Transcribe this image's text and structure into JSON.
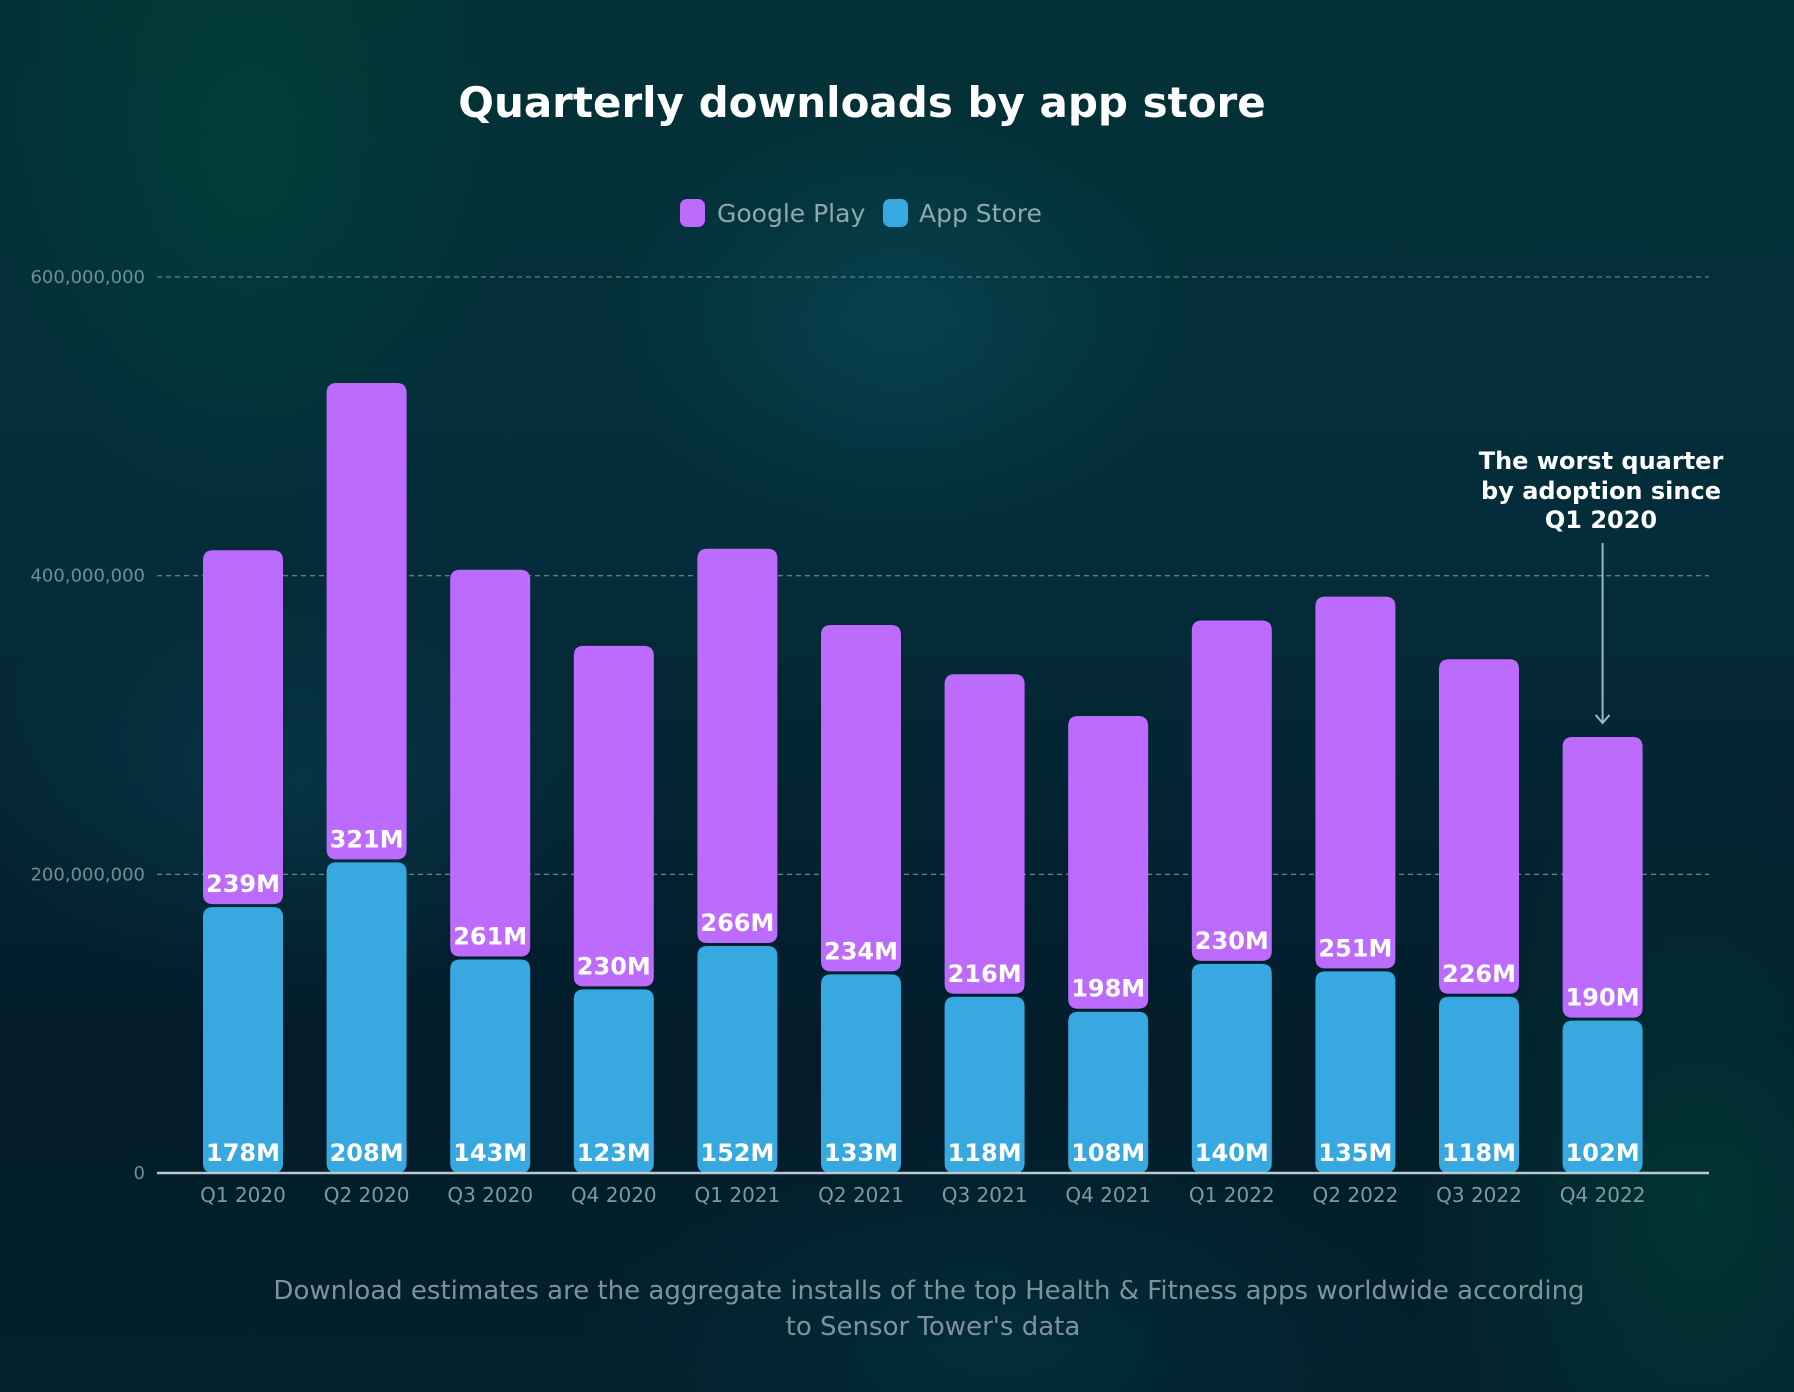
{
  "chart_data": {
    "type": "bar",
    "stacked": true,
    "title": "Quarterly downloads by app store",
    "xlabel": "",
    "ylabel": "",
    "ylim": [
      0,
      600000000
    ],
    "yticks": [
      0,
      200000000,
      400000000,
      600000000
    ],
    "ytick_labels": [
      "0",
      "200,000,000",
      "400,000,000",
      "600,000,000"
    ],
    "grid": true,
    "legend_position": "top-center",
    "categories": [
      "Q1 2020",
      "Q2 2020",
      "Q3 2020",
      "Q4 2020",
      "Q1 2021",
      "Q2 2021",
      "Q3 2021",
      "Q4 2021",
      "Q1 2022",
      "Q2 2022",
      "Q3 2022",
      "Q4 2022"
    ],
    "series": [
      {
        "name": "App Store",
        "color": "#38a9e0",
        "values": [
          178000000,
          208000000,
          143000000,
          123000000,
          152000000,
          133000000,
          118000000,
          108000000,
          140000000,
          135000000,
          118000000,
          102000000
        ],
        "labels": [
          "178M",
          "208M",
          "143M",
          "123M",
          "152M",
          "133M",
          "118M",
          "108M",
          "140M",
          "135M",
          "118M",
          "102M"
        ]
      },
      {
        "name": "Google Play",
        "color": "#bd6bfd",
        "values": [
          239000000,
          321000000,
          261000000,
          230000000,
          266000000,
          234000000,
          216000000,
          198000000,
          230000000,
          251000000,
          226000000,
          190000000
        ],
        "labels": [
          "239M",
          "321M",
          "261M",
          "230M",
          "266M",
          "234M",
          "216M",
          "198M",
          "230M",
          "251M",
          "226M",
          "190M"
        ]
      }
    ],
    "legend": [
      {
        "name": "Google Play",
        "color": "#bd6bfd"
      },
      {
        "name": "App Store",
        "color": "#38a9e0"
      }
    ],
    "annotation": {
      "lines": [
        "The worst quarter",
        "by adoption since",
        "Q1 2020"
      ],
      "target_category": "Q4 2022"
    },
    "footnote": [
      "Download estimates are the aggregate installs of the top Health & Fitness apps worldwide according",
      "to Sensor Tower's data"
    ]
  }
}
